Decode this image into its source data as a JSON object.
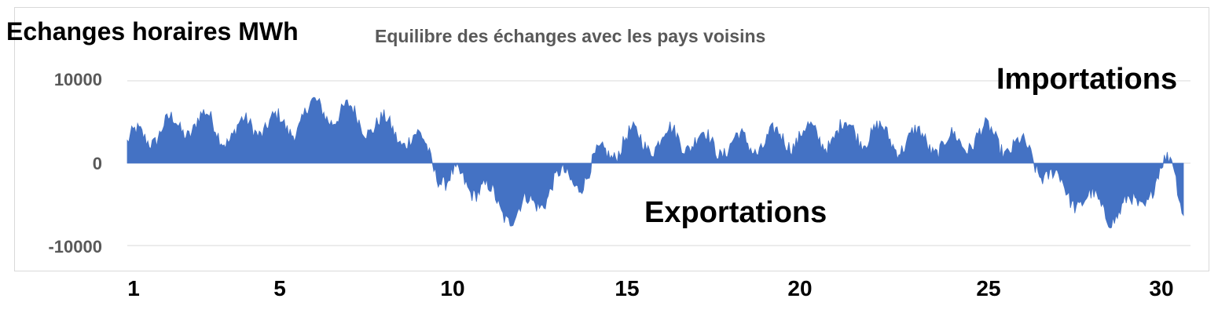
{
  "chart_data": {
    "type": "area",
    "title": "Echanges horaires MWh",
    "subtitle": "Equilibre des échanges avec les pays voisins",
    "xlabel": "",
    "ylabel": "",
    "annotations": [
      "Importations",
      "Exportations"
    ],
    "x_ticks": [
      "1",
      "5",
      "10",
      "15",
      "20",
      "25",
      "30"
    ],
    "y_ticks": [
      "10000",
      "0",
      "-10000"
    ],
    "xlim": [
      1,
      31
    ],
    "ylim": [
      -12000,
      10000
    ],
    "grid": "horizontal",
    "legend": "none",
    "color": "#4472c4",
    "series": [
      {
        "x_unit": "day",
        "x": [
          1.0,
          1.5,
          2.0,
          2.5,
          3.0,
          3.5,
          4.0,
          4.5,
          5.0,
          5.5,
          6.0,
          6.5,
          7.0,
          7.5,
          8.0,
          8.5,
          9.0,
          9.5,
          10.0,
          10.5,
          11.0,
          11.5,
          12.0,
          12.5,
          13.0,
          13.5,
          14.0,
          14.5,
          15.0,
          15.5,
          16.0,
          16.5,
          17.0,
          17.5,
          18.0,
          18.5,
          19.0,
          19.5,
          20.0,
          20.5,
          21.0,
          21.5,
          22.0,
          22.5,
          23.0,
          23.5,
          24.0,
          24.5,
          25.0,
          25.5,
          26.0,
          26.5,
          27.0,
          27.5,
          28.0,
          28.5,
          29.0,
          29.5,
          30.0,
          30.5,
          30.8
        ],
        "values": [
          2500,
          3000,
          4500,
          4000,
          5500,
          4000,
          3500,
          4500,
          5000,
          4000,
          6000,
          6500,
          6000,
          5500,
          4500,
          4000,
          3000,
          1500,
          -2500,
          -2000,
          -3000,
          -5500,
          -6000,
          -5000,
          -2500,
          -2000,
          -1500,
          1500,
          2500,
          3000,
          2500,
          3500,
          2500,
          2500,
          2000,
          2500,
          2500,
          3000,
          3500,
          3000,
          3500,
          4000,
          3500,
          3000,
          2500,
          3000,
          2000,
          2500,
          3500,
          3000,
          2000,
          1000,
          -1500,
          -3500,
          -4500,
          -5500,
          -6000,
          -5000,
          -2500,
          500,
          -5000
        ]
      }
    ]
  }
}
